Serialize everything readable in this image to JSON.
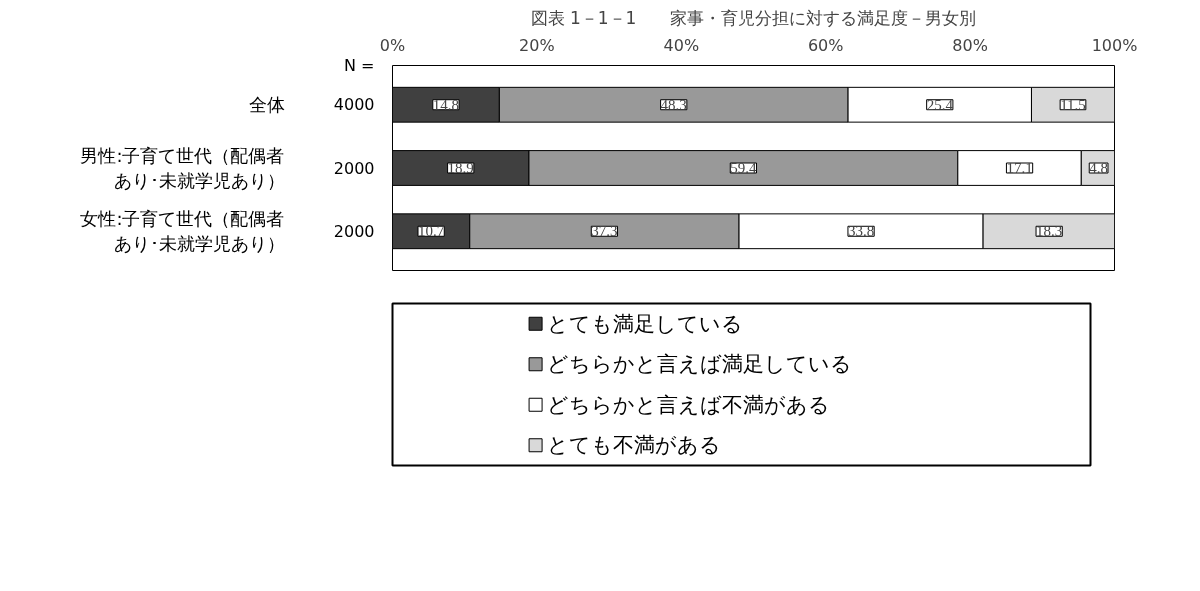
{
  "chart_data": {
    "type": "bar",
    "orientation": "horizontal",
    "stacked": true,
    "title": "図表 1－1－1　　家事・育児分担に対する満足度－男女別",
    "categories": [
      "全体",
      "男性:子育て世代（配偶者あり･未就学児あり）",
      "女性:子育て世代（配偶者あり･未就学児あり）"
    ],
    "series": [
      {
        "name": "とても満足している",
        "color": "#404040",
        "values": [
          14.8,
          18.9,
          10.7
        ]
      },
      {
        "name": "どちらかと言えば満足している",
        "color": "#999999",
        "values": [
          48.3,
          59.4,
          37.3
        ]
      },
      {
        "name": "どちらかと言えば不満がある",
        "color": "#ffffff",
        "values": [
          25.4,
          17.1,
          33.8
        ]
      },
      {
        "name": "とても不満がある",
        "color": "#d9d9d9",
        "values": [
          11.5,
          4.8,
          18.3
        ]
      }
    ],
    "xlim": [
      0,
      100
    ],
    "xticks": [
      {
        "value": 0,
        "label": "0%"
      },
      {
        "value": 20,
        "label": "20%"
      },
      {
        "value": 40,
        "label": "40%"
      },
      {
        "value": 60,
        "label": "60%"
      },
      {
        "value": 80,
        "label": "80%"
      },
      {
        "value": 100,
        "label": "100%"
      }
    ],
    "annotations": [
      "N =",
      "4000",
      "2000",
      "2000"
    ],
    "data_labels": true,
    "legend": "bottom",
    "grid": false
  }
}
